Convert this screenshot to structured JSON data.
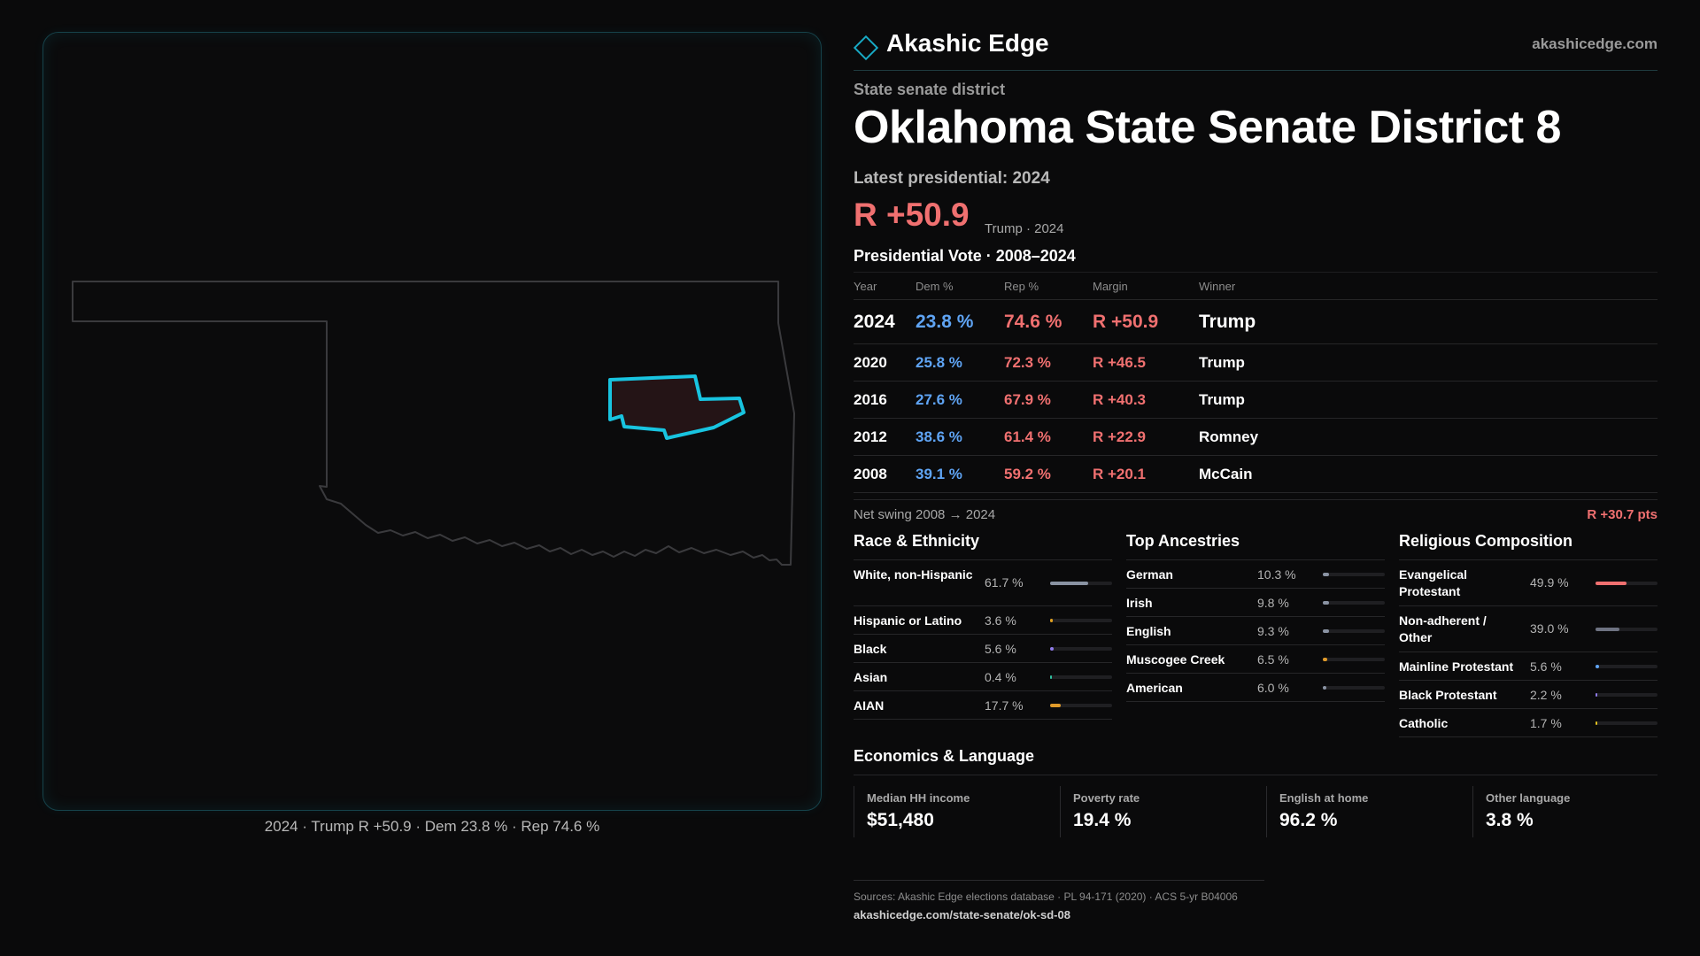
{
  "brand": {
    "name": "Akashic Edge",
    "url": "akashicedge.com"
  },
  "header": {
    "kicker": "State senate district",
    "title": "Oklahoma State Senate District 8",
    "latest": "Latest presidential: 2024",
    "margin": "R +50.9",
    "margin_sub": "Trump · 2024"
  },
  "map": {
    "caption": "2024 · Trump R +50.9 · Dem 23.8 % · Rep 74.6 %",
    "accent_color": "#18c4e0"
  },
  "vote_table": {
    "title": "Presidential Vote · 2008–2024",
    "columns": [
      "Year",
      "Dem %",
      "Rep %",
      "Margin",
      "Winner"
    ],
    "rows": [
      {
        "year": "2024",
        "dem": "23.8 %",
        "rep": "74.6 %",
        "margin": "R +50.9",
        "winner": "Trump"
      },
      {
        "year": "2020",
        "dem": "25.8 %",
        "rep": "72.3 %",
        "margin": "R +46.5",
        "winner": "Trump"
      },
      {
        "year": "2016",
        "dem": "27.6 %",
        "rep": "67.9 %",
        "margin": "R +40.3",
        "winner": "Trump"
      },
      {
        "year": "2012",
        "dem": "38.6 %",
        "rep": "61.4 %",
        "margin": "R +22.9",
        "winner": "Romney"
      },
      {
        "year": "2008",
        "dem": "39.1 %",
        "rep": "59.2 %",
        "margin": "R +20.1",
        "winner": "McCain"
      }
    ],
    "swing_label": "Net swing 2008 → 2024",
    "swing_value": "R +30.7 pts"
  },
  "race": {
    "title": "Race & Ethnicity",
    "rows": [
      {
        "label": "White, non-Hispanic",
        "value": "61.7 %",
        "level": 0.617,
        "color": "#8a93a3"
      },
      {
        "label": "Hispanic or Latino",
        "value": "3.6 %",
        "level": 0.036,
        "color": "#e0a020"
      },
      {
        "label": "Black",
        "value": "5.6 %",
        "level": 0.056,
        "color": "#8f7bea"
      },
      {
        "label": "Asian",
        "value": "0.4 %",
        "level": 0.004,
        "color": "#30c0a0"
      },
      {
        "label": "AIAN",
        "value": "17.7 %",
        "level": 0.177,
        "color": "#e09a2a"
      }
    ]
  },
  "ancestry": {
    "title": "Top Ancestries",
    "rows": [
      {
        "label": "German",
        "value": "10.3 %",
        "level": 0.103,
        "color": "#8a93a3"
      },
      {
        "label": "Irish",
        "value": "9.8 %",
        "level": 0.098,
        "color": "#8a93a3"
      },
      {
        "label": "English",
        "value": "9.3 %",
        "level": 0.093,
        "color": "#8a93a3"
      },
      {
        "label": "Muscogee Creek",
        "value": "6.5 %",
        "level": 0.065,
        "color": "#e09a2a"
      },
      {
        "label": "American",
        "value": "6.0 %",
        "level": 0.06,
        "color": "#8a93a3"
      }
    ]
  },
  "religion": {
    "title": "Religious Composition",
    "rows": [
      {
        "label": "Evangelical Protestant",
        "value": "49.9 %",
        "level": 0.499,
        "color": "#f07070"
      },
      {
        "label": "Non-adherent / Other",
        "value": "39.0 %",
        "level": 0.39,
        "color": "#6e7382"
      },
      {
        "label": "Mainline Protestant",
        "value": "5.6 %",
        "level": 0.056,
        "color": "#5fa4f4"
      },
      {
        "label": "Black Protestant",
        "value": "2.2 %",
        "level": 0.022,
        "color": "#8f7bea"
      },
      {
        "label": "Catholic",
        "value": "1.7 %",
        "level": 0.017,
        "color": "#e0c020"
      }
    ]
  },
  "economics": {
    "title": "Economics & Language",
    "cells": [
      {
        "label": "Median HH income",
        "value": "$51,480"
      },
      {
        "label": "Poverty rate",
        "value": "19.4 %"
      },
      {
        "label": "English at home",
        "value": "96.2 %"
      },
      {
        "label": "Other language",
        "value": "3.8 %"
      }
    ]
  },
  "footer": {
    "sources": "Sources: Akashic Edge elections database · PL 94-171 (2020) · ACS 5-yr B04006",
    "url": "akashicedge.com/state-senate/ok-sd-08"
  }
}
